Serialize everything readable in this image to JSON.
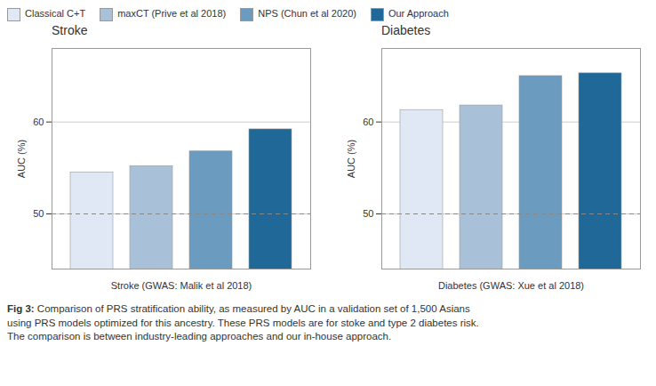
{
  "chart_data": [
    {
      "type": "bar",
      "title": "Stroke",
      "categories": [
        "Classical C+T",
        "maxCT (Prive et al 2018)",
        "NPS (Chun et al 2020)",
        "Our Approach"
      ],
      "values": [
        54.5,
        55.2,
        56.8,
        59.2
      ],
      "colors": [
        "#e0e8f5",
        "#a8c0d8",
        "#6b9bbf",
        "#1f6898"
      ],
      "xlabel": "Stroke (GWAS: Malik et al 2018)",
      "ylabel": "AUC (%)",
      "ylim": [
        44,
        68
      ],
      "yticks": [
        50,
        60
      ],
      "grid": true,
      "reference_line": 50,
      "tick_labels": "y",
      "legend": "upper left"
    },
    {
      "type": "bar",
      "title": "Diabetes",
      "categories": [
        "Classical C+T",
        "maxCT (Prive et al 2018)",
        "NPS (Chun et al 2020)",
        "Our Approach"
      ],
      "values": [
        61.3,
        61.8,
        65.0,
        65.3
      ],
      "colors": [
        "#e0e8f5",
        "#a8c0d8",
        "#6b9bbf",
        "#1f6898"
      ],
      "xlabel": "Diabetes (GWAS: Xue et al 2018)",
      "ylabel": "AUC (%)",
      "ylim": [
        44,
        68
      ],
      "yticks": [
        50,
        60
      ],
      "grid": true,
      "reference_line": 50,
      "tick_labels": "y"
    }
  ],
  "caption_bold": "Fig 3:",
  "caption": " Comparison of PRS stratification ability, as measured by AUC in a validation set of 1,500 Asians\nusing PRS models optimized for this ancestry. These PRS models are for stoke and type 2 diabetes risk.\nThe comparison is between industry-leading approaches and our in-house approach."
}
